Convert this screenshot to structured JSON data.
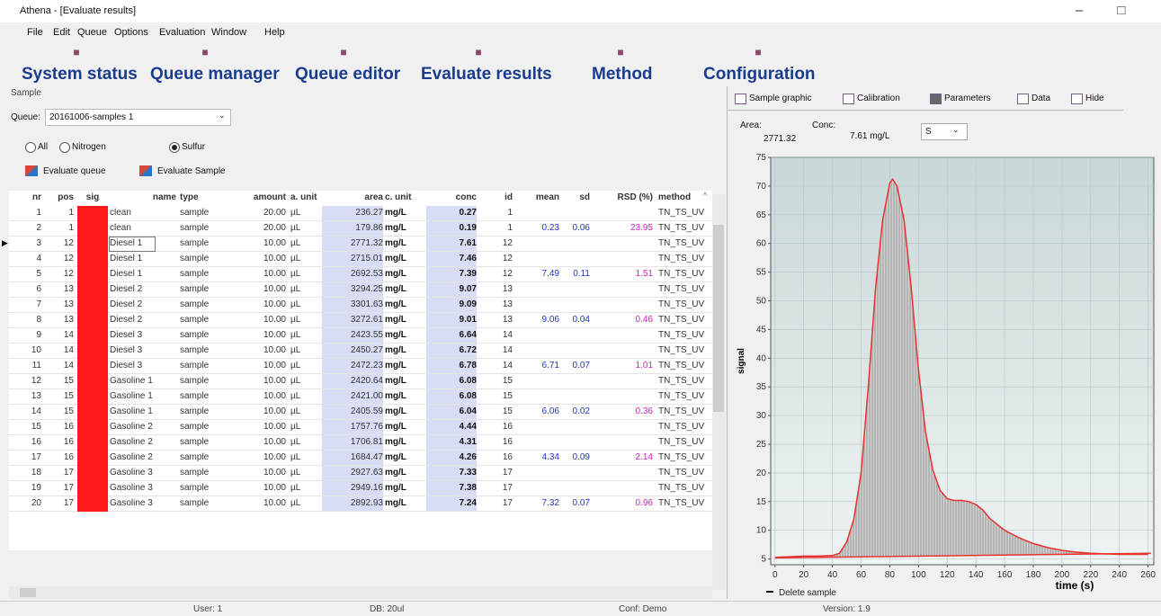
{
  "window_title": "Athena - [Evaluate results]",
  "menu": [
    "File",
    "Edit",
    "Queue",
    "Options",
    "Evaluation",
    "Window",
    "Help"
  ],
  "toolbar": [
    "System status",
    "Queue manager",
    "Queue editor",
    "Evaluate results",
    "Method",
    "Configuration"
  ],
  "sample_panel": {
    "title": "Sample",
    "queue_label": "Queue:",
    "queue_value": "20161006-samples 1",
    "radios": [
      "All",
      "Nitrogen",
      "Sulfur"
    ],
    "selected_radio": 2,
    "buttons": [
      "Evaluate queue",
      "Evaluate Sample"
    ]
  },
  "table": {
    "columns": [
      "nr",
      "pos",
      "sig",
      "name",
      "type",
      "amount",
      "a. unit",
      "area",
      "c. unit",
      "conc",
      "id",
      "mean",
      "sd",
      "RSD (%)",
      "method"
    ],
    "selected_row": 2,
    "rows": [
      [
        "1",
        "1",
        null,
        "clean",
        "sample",
        "20.00",
        "µL",
        "236.27",
        "mg/L",
        "0.27",
        "1",
        null,
        null,
        null,
        "TN_TS_UV"
      ],
      [
        "2",
        "1",
        null,
        "clean",
        "sample",
        "20.00",
        "µL",
        "179.86",
        "mg/L",
        "0.19",
        "1",
        "0.23",
        "0.06",
        "23.95",
        "TN_TS_UV"
      ],
      [
        "3",
        "12",
        null,
        "Diesel 1",
        "sample",
        "10.00",
        "µL",
        "2771.32",
        "mg/L",
        "7.61",
        "12",
        null,
        null,
        null,
        "TN_TS_UV"
      ],
      [
        "4",
        "12",
        null,
        "Diesel 1",
        "sample",
        "10.00",
        "µL",
        "2715.01",
        "mg/L",
        "7.46",
        "12",
        null,
        null,
        null,
        "TN_TS_UV"
      ],
      [
        "5",
        "12",
        null,
        "Diesel 1",
        "sample",
        "10.00",
        "µL",
        "2692.53",
        "mg/L",
        "7.39",
        "12",
        "7.49",
        "0.11",
        "1.51",
        "TN_TS_UV"
      ],
      [
        "6",
        "13",
        null,
        "Diesel 2",
        "sample",
        "10.00",
        "µL",
        "3294.25",
        "mg/L",
        "9.07",
        "13",
        null,
        null,
        null,
        "TN_TS_UV"
      ],
      [
        "7",
        "13",
        null,
        "Diesel 2",
        "sample",
        "10.00",
        "µL",
        "3301.63",
        "mg/L",
        "9.09",
        "13",
        null,
        null,
        null,
        "TN_TS_UV"
      ],
      [
        "8",
        "13",
        null,
        "Diesel 2",
        "sample",
        "10.00",
        "µL",
        "3272.61",
        "mg/L",
        "9.01",
        "13",
        "9.06",
        "0.04",
        "0.46",
        "TN_TS_UV"
      ],
      [
        "9",
        "14",
        null,
        "Diesel 3",
        "sample",
        "10.00",
        "µL",
        "2423.55",
        "mg/L",
        "6.64",
        "14",
        null,
        null,
        null,
        "TN_TS_UV"
      ],
      [
        "10",
        "14",
        null,
        "Diesel 3",
        "sample",
        "10.00",
        "µL",
        "2450.27",
        "mg/L",
        "6.72",
        "14",
        null,
        null,
        null,
        "TN_TS_UV"
      ],
      [
        "11",
        "14",
        null,
        "Diesel 3",
        "sample",
        "10.00",
        "µL",
        "2472.23",
        "mg/L",
        "6.78",
        "14",
        "6.71",
        "0.07",
        "1.01",
        "TN_TS_UV"
      ],
      [
        "12",
        "15",
        null,
        "Gasoline 1",
        "sample",
        "10.00",
        "µL",
        "2420.64",
        "mg/L",
        "6.08",
        "15",
        null,
        null,
        null,
        "TN_TS_UV"
      ],
      [
        "13",
        "15",
        null,
        "Gasoline 1",
        "sample",
        "10.00",
        "µL",
        "2421.00",
        "mg/L",
        "6.08",
        "15",
        null,
        null,
        null,
        "TN_TS_UV"
      ],
      [
        "14",
        "15",
        null,
        "Gasoline 1",
        "sample",
        "10.00",
        "µL",
        "2405.59",
        "mg/L",
        "6.04",
        "15",
        "6.06",
        "0.02",
        "0.36",
        "TN_TS_UV"
      ],
      [
        "15",
        "16",
        null,
        "Gasoline 2",
        "sample",
        "10.00",
        "µL",
        "1757.76",
        "mg/L",
        "4.44",
        "16",
        null,
        null,
        null,
        "TN_TS_UV"
      ],
      [
        "16",
        "16",
        null,
        "Gasoline 2",
        "sample",
        "10.00",
        "µL",
        "1706.81",
        "mg/L",
        "4.31",
        "16",
        null,
        null,
        null,
        "TN_TS_UV"
      ],
      [
        "17",
        "16",
        null,
        "Gasoline 2",
        "sample",
        "10.00",
        "µL",
        "1684.47",
        "mg/L",
        "4.26",
        "16",
        "4.34",
        "0.09",
        "2.14",
        "TN_TS_UV"
      ],
      [
        "18",
        "17",
        null,
        "Gasoline 3",
        "sample",
        "10.00",
        "µL",
        "2927.63",
        "mg/L",
        "7.33",
        "17",
        null,
        null,
        null,
        "TN_TS_UV"
      ],
      [
        "19",
        "17",
        null,
        "Gasoline 3",
        "sample",
        "10.00",
        "µL",
        "2949.16",
        "mg/L",
        "7.38",
        "17",
        null,
        null,
        null,
        "TN_TS_UV"
      ],
      [
        "20",
        "17",
        null,
        "Gasoline 3",
        "sample",
        "10.00",
        "µL",
        "2892.93",
        "mg/L",
        "7.24",
        "17",
        "7.32",
        "0.07",
        "0.96",
        "TN_TS_UV"
      ]
    ]
  },
  "tabs": [
    "Sample graphic",
    "Calibration",
    "Parameters",
    "Data",
    "Hide"
  ],
  "info": {
    "area_label": "Area:",
    "area_value": "2771.32",
    "conc_label": "Conc:",
    "conc_value": "7.61 mg/L",
    "element": "S"
  },
  "chart_data": {
    "type": "line",
    "ylabel": "signal",
    "xlabel": "time (s)",
    "x": [
      0,
      10,
      20,
      30,
      40,
      45,
      50,
      55,
      60,
      65,
      70,
      75,
      80,
      82,
      85,
      90,
      95,
      100,
      105,
      110,
      115,
      120,
      125,
      130,
      135,
      140,
      145,
      150,
      160,
      170,
      180,
      190,
      200,
      210,
      220,
      240,
      260
    ],
    "series": [
      {
        "color": "#e8322e",
        "values": [
          5.3,
          5.4,
          5.5,
          5.5,
          5.6,
          6,
          8,
          12,
          20,
          35,
          52,
          64,
          70.5,
          71.2,
          70,
          64,
          52,
          38,
          27,
          20.5,
          17,
          15.5,
          15.2,
          15.2,
          15,
          14.5,
          13.5,
          12,
          10,
          8.7,
          7.7,
          7,
          6.5,
          6.2,
          6,
          5.8,
          5.8
        ]
      }
    ],
    "baseline": {
      "x": [
        0,
        262
      ],
      "values": [
        5.2,
        6.0
      ]
    },
    "fill_color": "#a8a8a8",
    "xlim": [
      -3,
      264
    ],
    "ylim": [
      4,
      75
    ],
    "xticks": [
      0,
      20,
      40,
      60,
      80,
      100,
      120,
      140,
      160,
      180,
      200,
      220,
      240,
      260
    ],
    "yticks": [
      5,
      10,
      15,
      20,
      25,
      30,
      35,
      40,
      45,
      50,
      55,
      60,
      65,
      70,
      75
    ],
    "grid": true,
    "legend": "Delete sample"
  },
  "status": [
    "User: 1",
    "DB: 20ul",
    "Conf: Demo",
    "Version: 1.9"
  ]
}
